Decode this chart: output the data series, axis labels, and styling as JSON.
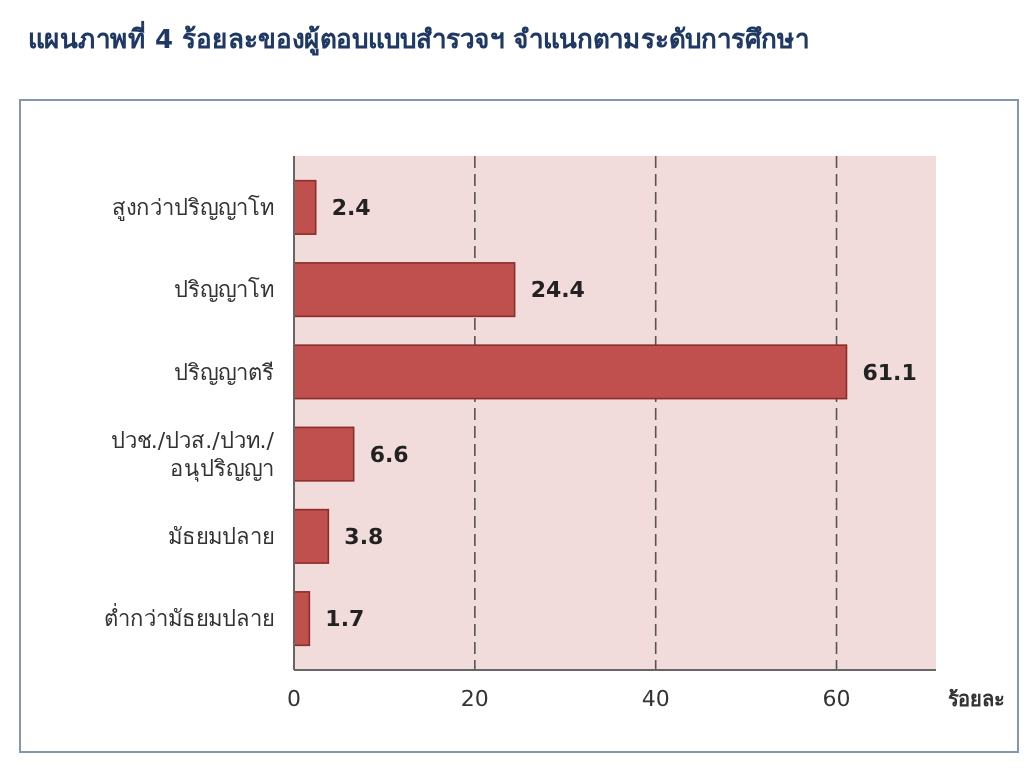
{
  "chart_data": {
    "type": "bar",
    "orientation": "horizontal",
    "title": "แผนภาพที่  4 ร้อยละของผู้ตอบแบบสำรวจฯ จำแนกตามระดับการศึกษา",
    "xlabel": "ร้อยละ",
    "categories": [
      "สูงกว่าปริญญาโท",
      "ปริญญาโท",
      "ปริญญาตรี",
      "ปวช./ปวส./ปวท./\nอนุปริญญา",
      "มัธยมปลาย",
      "ต่ำกว่ามัธยมปลาย"
    ],
    "values": [
      2.4,
      24.4,
      61.1,
      6.6,
      3.8,
      1.7
    ],
    "color": "#c0504d",
    "xlim": [
      0,
      71
    ],
    "xticks": [
      0,
      20,
      40,
      60
    ],
    "grid": "x",
    "data_labels": true
  }
}
